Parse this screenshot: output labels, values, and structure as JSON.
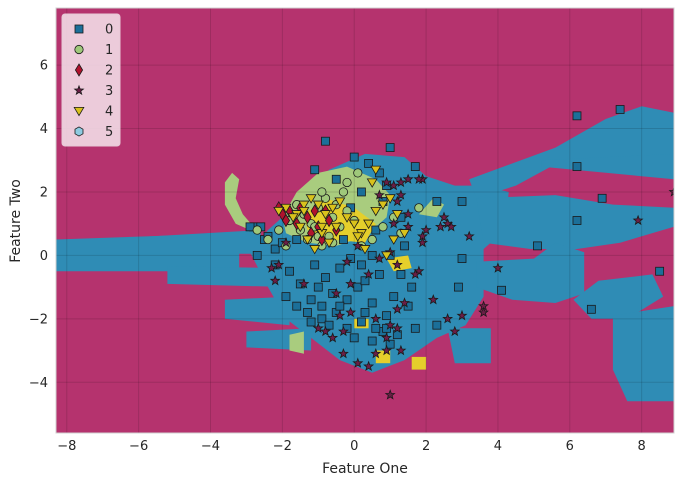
{
  "chart_data": {
    "type": "scatter",
    "title": "",
    "xlabel": "Feature One",
    "ylabel": "Feature Two",
    "xlim": [
      -8.3,
      8.9
    ],
    "ylim": [
      -5.6,
      7.8
    ],
    "x_ticks": [
      -8,
      -6,
      -4,
      -2,
      0,
      2,
      4,
      6,
      8
    ],
    "y_ticks": [
      -4,
      -2,
      0,
      2,
      4,
      6
    ],
    "grid": true,
    "legend_position": "top-left",
    "background_region_color": "#b5336e",
    "region_colors": {
      "0": "#2f8cb5",
      "1": "#a9cc7e",
      "4": "#e5cf2b"
    },
    "series": [
      {
        "name": "0",
        "marker": "square",
        "color": "#1b6f99",
        "points": [
          [
            -0.8,
            3.6
          ],
          [
            0,
            3.1
          ],
          [
            0.4,
            2.9
          ],
          [
            1,
            3.4
          ],
          [
            1.7,
            2.8
          ],
          [
            -1.1,
            2.7
          ],
          [
            6.2,
            4.4
          ],
          [
            7.4,
            4.6
          ],
          [
            6.2,
            2.8
          ],
          [
            6.9,
            1.8
          ],
          [
            6.2,
            1.1
          ],
          [
            5.1,
            0.3
          ],
          [
            8.5,
            -0.5
          ],
          [
            6.6,
            -1.7
          ],
          [
            3,
            1.7
          ],
          [
            2.3,
            1.7
          ],
          [
            3,
            -0.1
          ],
          [
            2.9,
            -1
          ],
          [
            4.1,
            -1.1
          ],
          [
            2.3,
            -2.2
          ],
          [
            1.7,
            -2.3
          ],
          [
            1.6,
            -1
          ],
          [
            1.3,
            -0.6
          ],
          [
            1.1,
            -1.3
          ],
          [
            0.7,
            -0.6
          ],
          [
            0.5,
            0
          ],
          [
            0.2,
            -0.3
          ],
          [
            -0.2,
            -1.4
          ],
          [
            -0.5,
            -1.8
          ],
          [
            -0.9,
            -2
          ],
          [
            -1.2,
            -1.4
          ],
          [
            -1.5,
            -0.9
          ],
          [
            -1.8,
            -0.5
          ],
          [
            -2.2,
            -0.3
          ],
          [
            -2.7,
            0
          ],
          [
            -2.8,
            0.9
          ],
          [
            -2.5,
            0.5
          ],
          [
            -2.2,
            0.2
          ],
          [
            -1.1,
            -0.3
          ],
          [
            -0.8,
            -0.7
          ],
          [
            -0.4,
            -0.4
          ],
          [
            0.1,
            -1
          ],
          [
            0.5,
            -1.5
          ],
          [
            0.9,
            -1.9
          ],
          [
            0.8,
            -2.4
          ],
          [
            0.5,
            -2.7
          ],
          [
            1,
            -2.8
          ],
          [
            0.2,
            -2.1
          ],
          [
            -0.2,
            -2.3
          ],
          [
            -0.6,
            -1.2
          ],
          [
            -1,
            -1
          ],
          [
            -1.3,
            -1.8
          ],
          [
            -0.7,
            -2.2
          ],
          [
            0.3,
            -0.8
          ],
          [
            1,
            0
          ],
          [
            1.4,
            0.3
          ],
          [
            1.3,
            1.2
          ],
          [
            0.8,
            1.7
          ],
          [
            0.2,
            2
          ],
          [
            -0.5,
            2.4
          ],
          [
            0.7,
            2.6
          ],
          [
            0.9,
            2.2
          ],
          [
            -0.1,
            1.5
          ],
          [
            0.6,
            0.8
          ],
          [
            -0.3,
            0.5
          ],
          [
            -1.6,
            0.5
          ],
          [
            -2,
            0.4
          ],
          [
            -2.4,
            0.6
          ],
          [
            -1.9,
            -1.3
          ],
          [
            -1.6,
            -1.6
          ],
          [
            0.3,
            -1.8
          ],
          [
            0.9,
            -2.3
          ],
          [
            1.2,
            -2.5
          ],
          [
            0.6,
            -2.3
          ],
          [
            0,
            -2.6
          ],
          [
            -0.4,
            -1.6
          ],
          [
            1.5,
            -1.6
          ],
          [
            -0.9,
            -1.6
          ],
          [
            -1.2,
            -2.1
          ],
          [
            -2.9,
            0.9
          ],
          [
            -2.6,
            0.9
          ],
          [
            -0.1,
            -0.1
          ]
        ]
      },
      {
        "name": "1",
        "marker": "circle",
        "color": "#9fc87a",
        "points": [
          [
            -1.6,
            1.6
          ],
          [
            -1.4,
            1.3
          ],
          [
            -1.2,
            1
          ],
          [
            -1,
            1.5
          ],
          [
            -0.8,
            1.8
          ],
          [
            -0.6,
            1.2
          ],
          [
            -0.4,
            0.9
          ],
          [
            -0.2,
            1.4
          ],
          [
            0,
            1.1
          ],
          [
            -1.8,
            1.1
          ],
          [
            -1.5,
            0.8
          ],
          [
            -1.3,
            0.5
          ],
          [
            -1.1,
            0.9
          ],
          [
            -0.9,
            0.3
          ],
          [
            -0.7,
            0.6
          ],
          [
            -0.5,
            1.6
          ],
          [
            -0.3,
            2
          ],
          [
            -2.1,
            0.8
          ],
          [
            -2.4,
            0.5
          ],
          [
            -2.7,
            0.8
          ],
          [
            -1.9,
            0.3
          ],
          [
            0.2,
            0.3
          ],
          [
            0.5,
            0.5
          ],
          [
            0.8,
            0.9
          ],
          [
            1.1,
            1.2
          ],
          [
            1.3,
            0.7
          ],
          [
            -0.2,
            2.3
          ],
          [
            0.1,
            2.6
          ],
          [
            -0.9,
            2
          ],
          [
            1.8,
            1.5
          ],
          [
            -1,
            0.6
          ],
          [
            -0.6,
            0.4
          ]
        ]
      },
      {
        "name": "2",
        "marker": "diamond",
        "color": "#b0122d",
        "points": [
          [
            -2.1,
            1.5
          ],
          [
            -2,
            1.3
          ],
          [
            -1.8,
            1.4
          ],
          [
            -1.5,
            1.5
          ],
          [
            -1.3,
            1.2
          ],
          [
            -1.2,
            0.7
          ],
          [
            -1.1,
            1.4
          ],
          [
            -1,
            0.9
          ],
          [
            -0.9,
            0.5
          ],
          [
            -0.7,
            1.1
          ],
          [
            -0.5,
            0.8
          ],
          [
            -1.6,
            1
          ],
          [
            -1.9,
            1.1
          ],
          [
            -0.8,
            1.4
          ]
        ]
      },
      {
        "name": "3",
        "marker": "star",
        "color": "#6b1e46",
        "points": [
          [
            8.9,
            2
          ],
          [
            7.9,
            1.1
          ],
          [
            4,
            -0.4
          ],
          [
            3.2,
            0.6
          ],
          [
            3,
            -1.9
          ],
          [
            3.6,
            -1.6
          ],
          [
            2.8,
            -2.4
          ],
          [
            2.2,
            -1.4
          ],
          [
            2.4,
            0.9
          ],
          [
            2.6,
            1
          ],
          [
            2.7,
            0.9
          ],
          [
            2,
            0.8
          ],
          [
            1.9,
            0.6
          ],
          [
            2.5,
            1.2
          ],
          [
            1.9,
            2.4
          ],
          [
            1.8,
            2.4
          ],
          [
            1.5,
            2.4
          ],
          [
            1.3,
            2.3
          ],
          [
            1.1,
            2.2
          ],
          [
            0.9,
            2.3
          ],
          [
            1.2,
            1.7
          ],
          [
            1.5,
            1.3
          ],
          [
            1.9,
            0.4
          ],
          [
            1.8,
            -0.5
          ],
          [
            1.4,
            -1.5
          ],
          [
            1.2,
            -1.7
          ],
          [
            1,
            -2.2
          ],
          [
            1.2,
            -2.3
          ],
          [
            0.9,
            -2.6
          ],
          [
            0.6,
            -3.1
          ],
          [
            0.4,
            -3.5
          ],
          [
            0.1,
            -3.4
          ],
          [
            -0.3,
            -3.1
          ],
          [
            -0.3,
            -2.4
          ],
          [
            -0.6,
            -2.6
          ],
          [
            -0.4,
            -1.9
          ],
          [
            -0.5,
            -1.2
          ],
          [
            -0.1,
            -0.9
          ],
          [
            0.4,
            -0.6
          ],
          [
            0.7,
            -0.1
          ],
          [
            1,
            0.1
          ],
          [
            1.2,
            -0.3
          ],
          [
            0.6,
            -2
          ],
          [
            1,
            -4.4
          ],
          [
            0.9,
            -3
          ],
          [
            -0.1,
            -1.8
          ],
          [
            1.7,
            -0.6
          ],
          [
            -2.3,
            -0.4
          ],
          [
            -2.1,
            -0.3
          ],
          [
            -1.9,
            0.4
          ],
          [
            -1.4,
            -0.9
          ],
          [
            -1,
            -2.3
          ],
          [
            -0.8,
            -2.4
          ],
          [
            1.1,
            1
          ],
          [
            1.3,
            -3
          ],
          [
            -2.2,
            -0.8
          ],
          [
            1.5,
            0.9
          ],
          [
            0.7,
            1.9
          ],
          [
            0.1,
            0.3
          ],
          [
            -0.2,
            -0.2
          ],
          [
            3.6,
            -1.8
          ],
          [
            2.6,
            -2
          ],
          [
            1.3,
            1.9
          ]
        ]
      },
      {
        "name": "4",
        "marker": "triangle-down",
        "color": "#d9c21c",
        "points": [
          [
            -1.9,
            1.5
          ],
          [
            -1.6,
            1.3
          ],
          [
            -1.4,
            1.6
          ],
          [
            -1.2,
            1.8
          ],
          [
            -1,
            1.6
          ],
          [
            -0.8,
            1.3
          ],
          [
            -0.6,
            1.5
          ],
          [
            -0.4,
            1.7
          ],
          [
            -0.2,
            1.2
          ],
          [
            0,
            1
          ],
          [
            0.2,
            0.7
          ],
          [
            0.4,
            1
          ],
          [
            0.6,
            1.4
          ],
          [
            0.8,
            1.6
          ],
          [
            1,
            1.8
          ],
          [
            1.2,
            1.3
          ],
          [
            -1.5,
            0.9
          ],
          [
            -1.3,
            0.5
          ],
          [
            -1.1,
            0.2
          ],
          [
            -0.9,
            0.7
          ],
          [
            -0.7,
            0.4
          ],
          [
            -0.5,
            0.9
          ],
          [
            0.1,
            0.6
          ],
          [
            0.3,
            0.2
          ],
          [
            0.9,
            0
          ],
          [
            1.1,
            0.5
          ],
          [
            -1.7,
            1.2
          ],
          [
            0.6,
            2.7
          ],
          [
            0.5,
            2.3
          ],
          [
            1.4,
            0.7
          ],
          [
            -1.4,
            1.4
          ],
          [
            -2.1,
            1.4
          ],
          [
            -0.9,
            0.9
          ]
        ]
      },
      {
        "name": "5",
        "marker": "hexagon",
        "color": "#8ecae0",
        "points": []
      }
    ]
  }
}
